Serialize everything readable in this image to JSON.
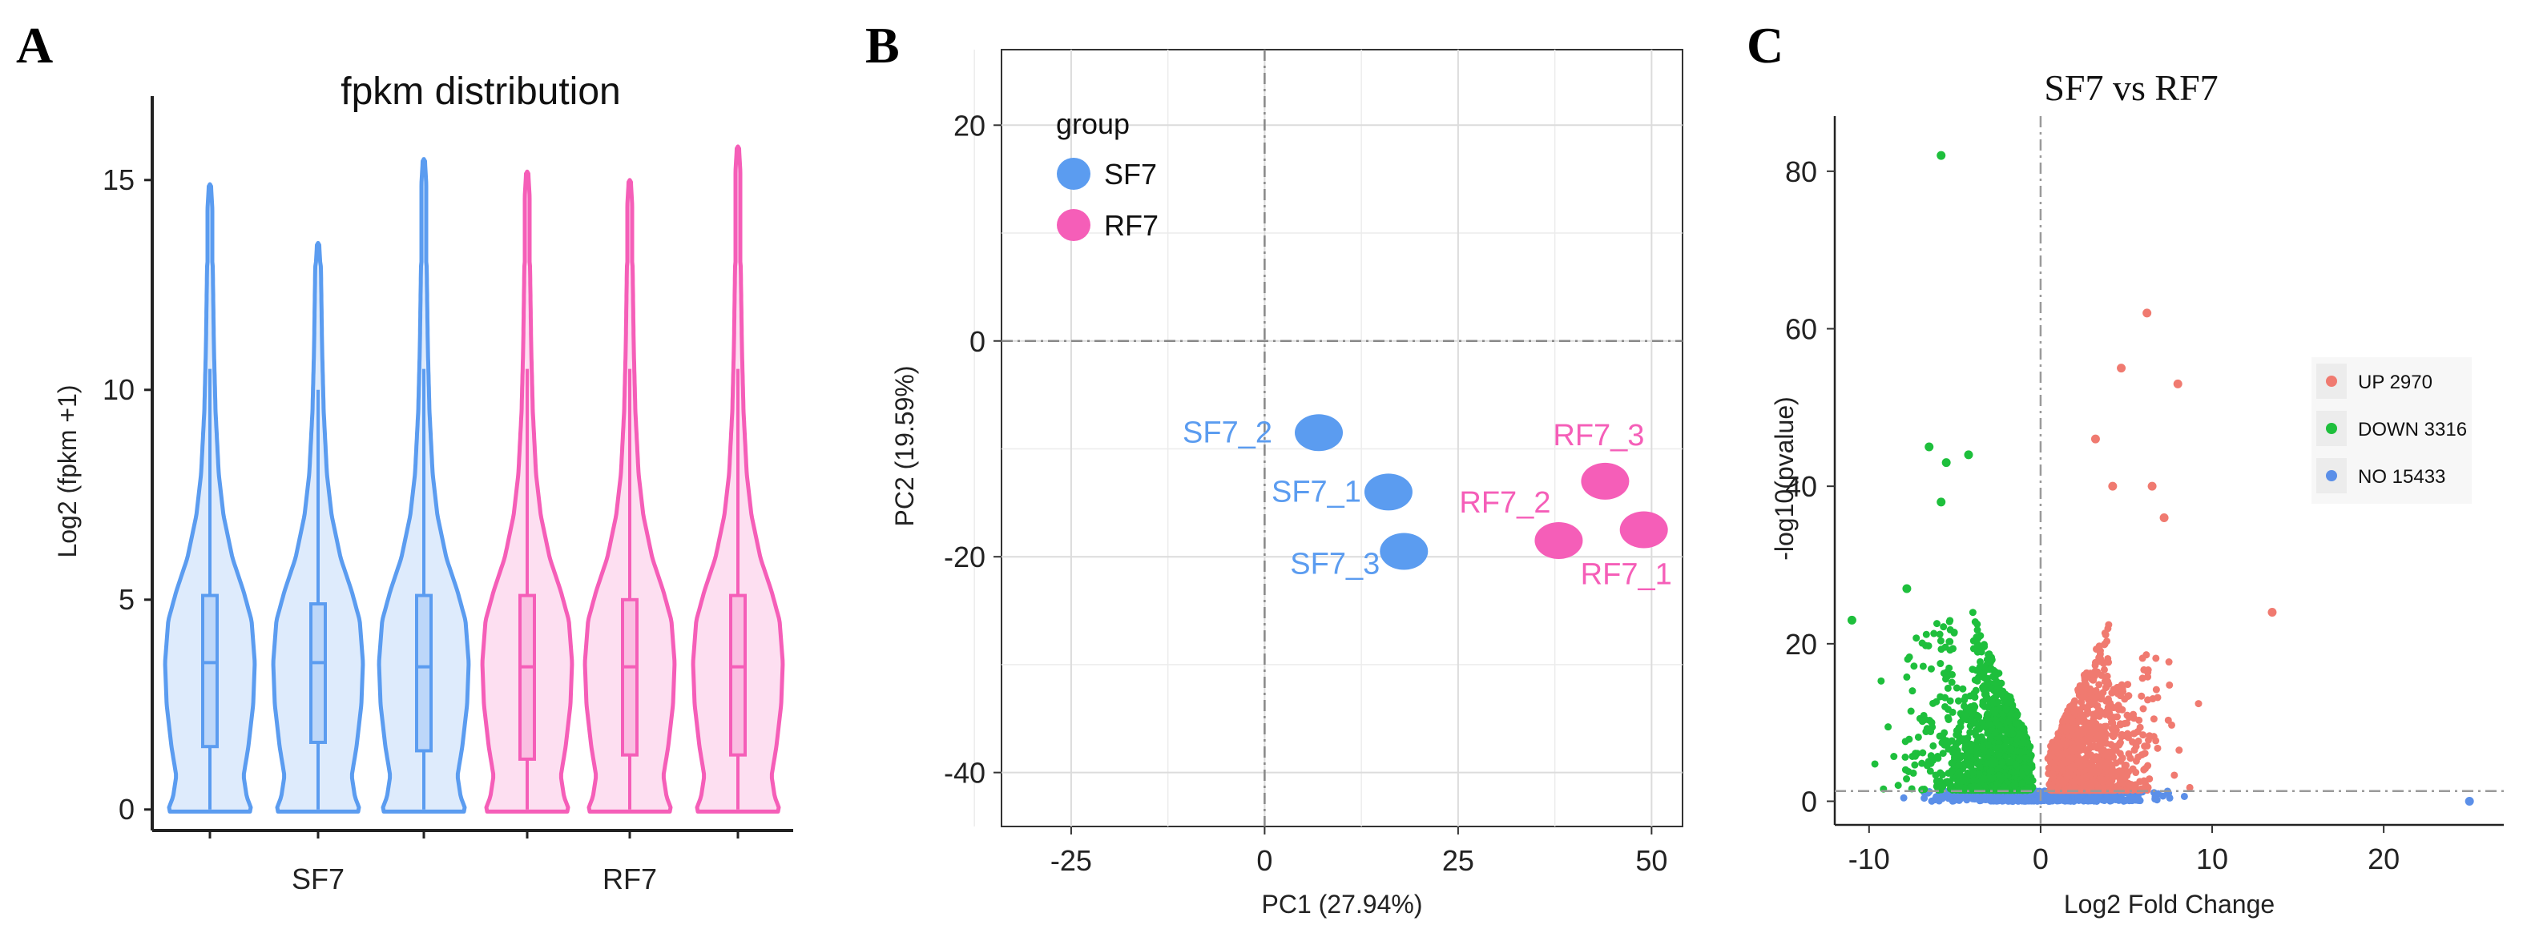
{
  "panel_letters": [
    "A",
    "B",
    "C"
  ],
  "colors": {
    "sf7": "#5b9cf0",
    "rf7": "#f55eb8",
    "up": "#f07a70",
    "down": "#1ebf3c",
    "no": "#5b8fe8"
  },
  "chart_data": [
    {
      "type": "violin",
      "title": "fpkm distribution",
      "ylabel": "Log2 (fpkm +1)",
      "xlabel": "",
      "ylim": [
        -0.5,
        17
      ],
      "yticks": [
        0,
        5,
        10,
        15
      ],
      "group_labels": [
        "SF7",
        "RF7"
      ],
      "samples": [
        {
          "group": "SF7",
          "max": 14.9,
          "q1": 1.5,
          "median": 3.5,
          "q3": 5.1,
          "whisker_high": 10.5
        },
        {
          "group": "SF7",
          "max": 13.5,
          "q1": 1.6,
          "median": 3.5,
          "q3": 4.9,
          "whisker_high": 10.0
        },
        {
          "group": "SF7",
          "max": 15.5,
          "q1": 1.4,
          "median": 3.4,
          "q3": 5.1,
          "whisker_high": 10.5
        },
        {
          "group": "RF7",
          "max": 15.2,
          "q1": 1.2,
          "median": 3.4,
          "q3": 5.1,
          "whisker_high": 10.5
        },
        {
          "group": "RF7",
          "max": 15.0,
          "q1": 1.3,
          "median": 3.4,
          "q3": 5.0,
          "whisker_high": 10.5
        },
        {
          "group": "RF7",
          "max": 15.8,
          "q1": 1.3,
          "median": 3.4,
          "q3": 5.1,
          "whisker_high": 10.5
        }
      ]
    },
    {
      "type": "scatter",
      "xlabel": "PC1 (27.94%)",
      "ylabel": "PC2 (19.59%)",
      "xlim": [
        -34,
        54
      ],
      "ylim": [
        -45,
        27
      ],
      "xticks": [
        -25,
        0,
        25,
        50
      ],
      "yticks": [
        20,
        0,
        -20,
        -40
      ],
      "legend_title": "group",
      "legend": [
        "SF7",
        "RF7"
      ],
      "points": [
        {
          "label": "SF7_2",
          "group": "SF7",
          "x": 7,
          "y": -8.5
        },
        {
          "label": "SF7_1",
          "group": "SF7",
          "x": 16,
          "y": -14
        },
        {
          "label": "SF7_3",
          "group": "SF7",
          "x": 18,
          "y": -19.5
        },
        {
          "label": "RF7_3",
          "group": "RF7",
          "x": 44,
          "y": -13
        },
        {
          "label": "RF7_2",
          "group": "RF7",
          "x": 38,
          "y": -18.5
        },
        {
          "label": "RF7_1",
          "group": "RF7",
          "x": 49,
          "y": -17.5
        }
      ]
    },
    {
      "type": "scatter",
      "title": "SF7 vs RF7",
      "xlabel": "Log2 Fold Change",
      "ylabel": "-log10(pvalue)",
      "xlim": [
        -12,
        27
      ],
      "ylim": [
        -3,
        87
      ],
      "xticks": [
        -10,
        0,
        10,
        20
      ],
      "yticks": [
        0,
        20,
        40,
        60,
        80
      ],
      "threshold": {
        "y": 1.3,
        "x": 0
      },
      "legend": [
        "UP 2970",
        "DOWN 3316",
        "NO 15433"
      ],
      "highlight_points": [
        {
          "class": "DOWN",
          "x": -5.8,
          "y": 82
        },
        {
          "class": "DOWN",
          "x": -11,
          "y": 23
        },
        {
          "class": "DOWN",
          "x": -6.5,
          "y": 45
        },
        {
          "class": "DOWN",
          "x": -5.5,
          "y": 43
        },
        {
          "class": "DOWN",
          "x": -4.2,
          "y": 44
        },
        {
          "class": "DOWN",
          "x": -5.8,
          "y": 38
        },
        {
          "class": "DOWN",
          "x": -7.8,
          "y": 27
        },
        {
          "class": "UP",
          "x": 6.2,
          "y": 62
        },
        {
          "class": "UP",
          "x": 4.7,
          "y": 55
        },
        {
          "class": "UP",
          "x": 8.0,
          "y": 53
        },
        {
          "class": "UP",
          "x": 3.2,
          "y": 46
        },
        {
          "class": "UP",
          "x": 6.5,
          "y": 40
        },
        {
          "class": "UP",
          "x": 4.2,
          "y": 40
        },
        {
          "class": "UP",
          "x": 7.2,
          "y": 36
        },
        {
          "class": "UP",
          "x": 13.5,
          "y": 24
        },
        {
          "class": "NO",
          "x": 25,
          "y": 0
        }
      ]
    }
  ]
}
